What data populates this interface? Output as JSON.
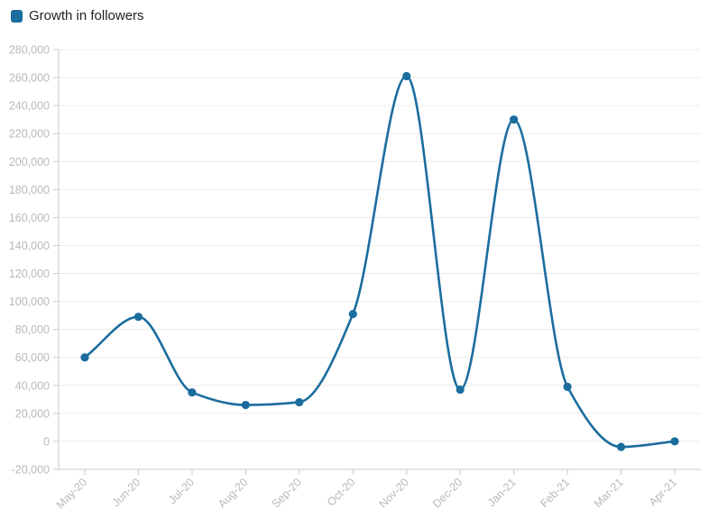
{
  "legend": {
    "label": "Growth in followers"
  },
  "chart_data": {
    "type": "line",
    "title": "Growth in followers",
    "categories": [
      "May-20",
      "Jun-20",
      "Jul-20",
      "Aug-20",
      "Sep-20",
      "Oct-20",
      "Nov-20",
      "Dec-20",
      "Jan-21",
      "Feb-21",
      "Mar-21",
      "Apr-21"
    ],
    "series": [
      {
        "name": "Growth in followers",
        "values": [
          60000,
          89000,
          35000,
          26000,
          28000,
          91000,
          261000,
          37000,
          230000,
          39000,
          -4000,
          0
        ]
      }
    ],
    "xlabel": "",
    "ylabel": "",
    "ylim": [
      -20000,
      280000
    ],
    "ytick_step": 20000,
    "y_tick_format": "comma",
    "x_label_rotation": -45,
    "grid": true,
    "legend_position": "top-left",
    "curve": "smooth-monotone",
    "colors": {
      "line": "#1b6d9e",
      "grid": "#ececec",
      "axis": "#c9c9c9",
      "tick_label": "#b9b9b9",
      "legend_text": "#1f1f1f",
      "background": "#ffffff"
    }
  }
}
